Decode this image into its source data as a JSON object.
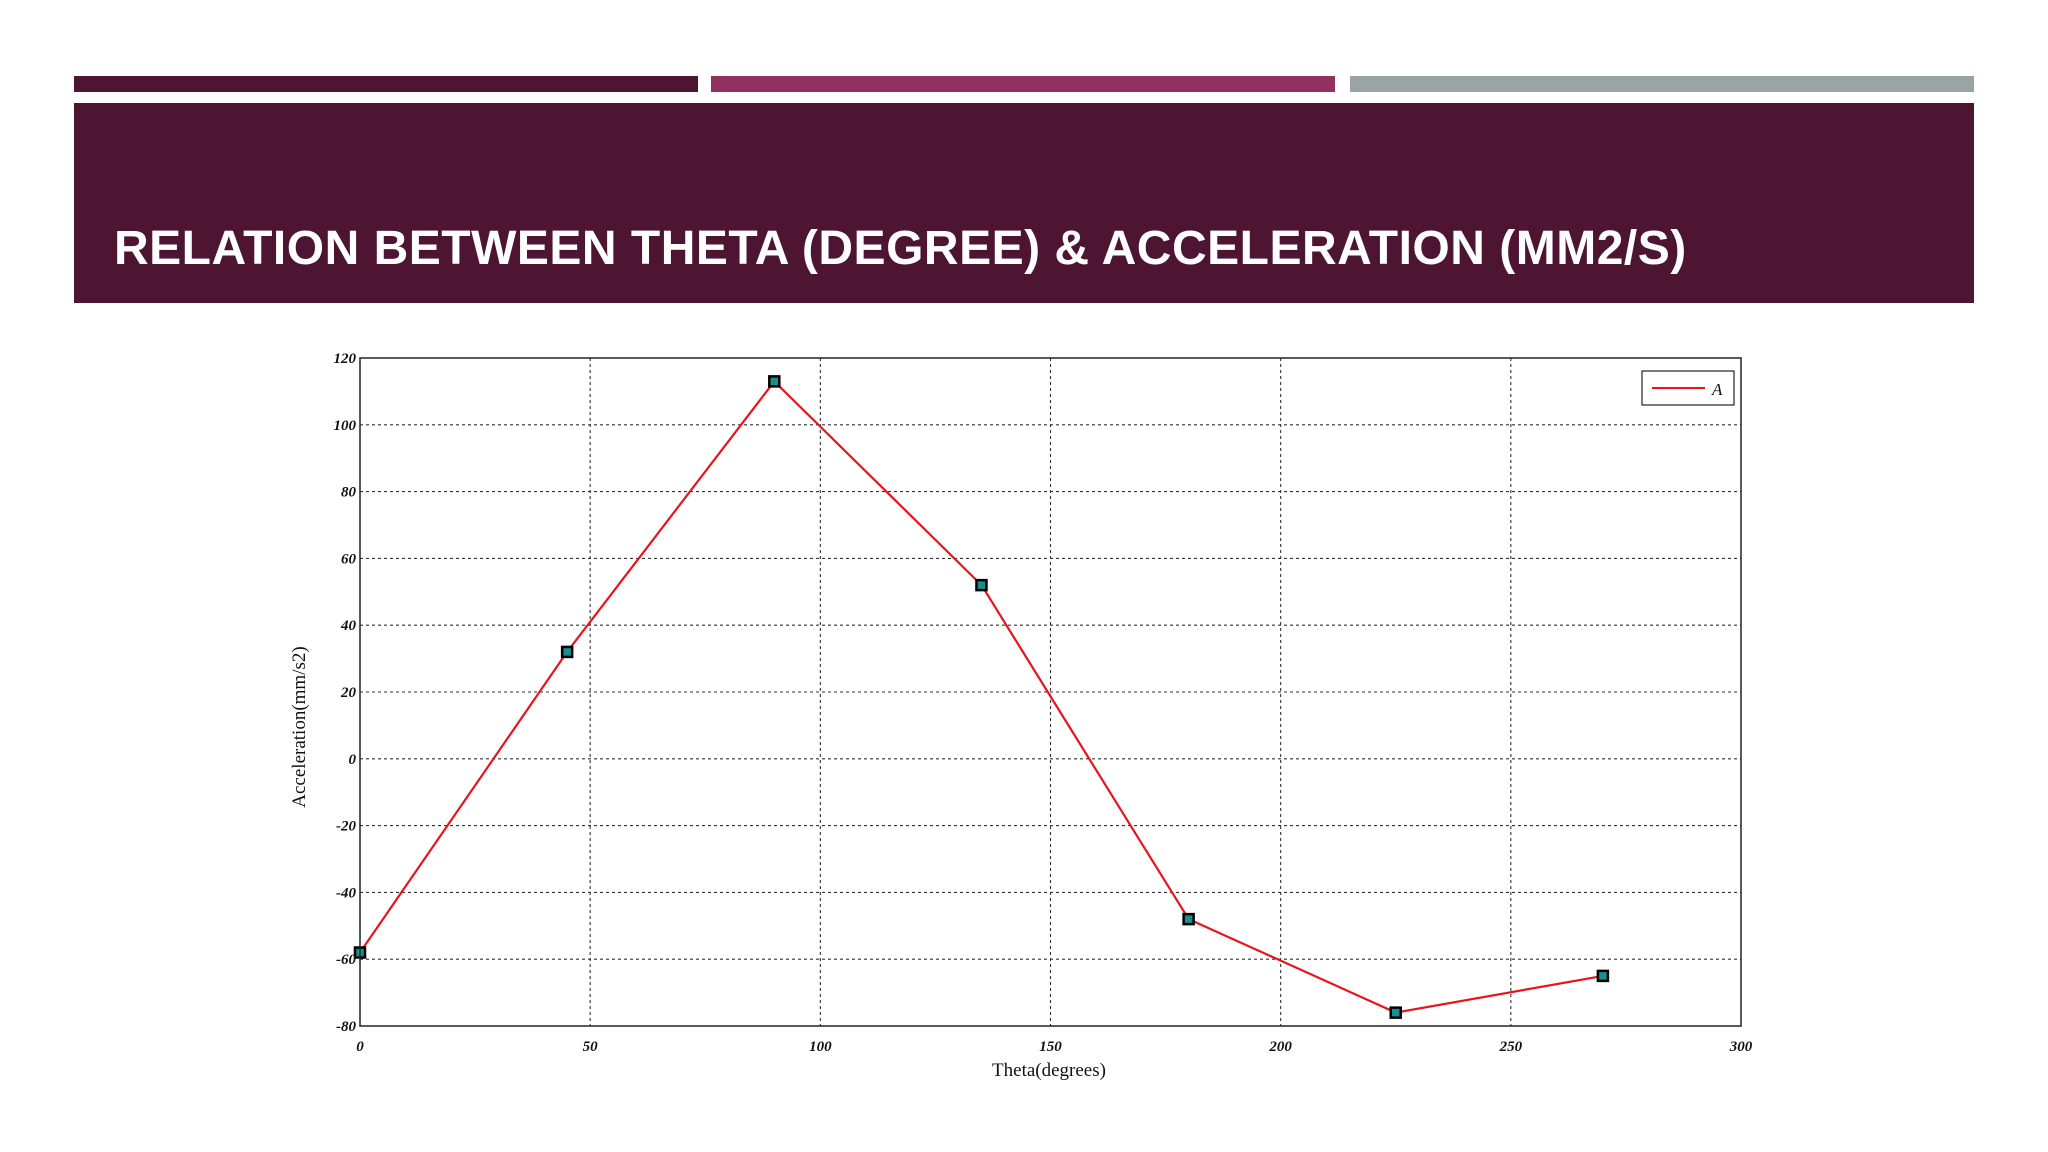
{
  "slide": {
    "title": "RELATION BETWEEN THETA (DEGREE) & ACCELERATION (MM2/S)",
    "header_color": "#4e1533",
    "accent_bars": [
      "#4e1533",
      "#913162",
      "#9aa4a6"
    ]
  },
  "chart_data": {
    "type": "line",
    "title": "",
    "xlabel": "Theta(degrees)",
    "ylabel": "Acceleration(mm/s2)",
    "xlim": [
      0,
      300
    ],
    "ylim": [
      -80,
      120
    ],
    "x_ticks": [
      0,
      50,
      100,
      150,
      200,
      250,
      300
    ],
    "y_ticks": [
      120,
      100,
      80,
      60,
      40,
      20,
      0,
      -20,
      -40,
      -60,
      -80
    ],
    "grid": true,
    "legend_position": "top-right",
    "series": [
      {
        "name": "A",
        "color": "#e8141c",
        "x": [
          0,
          45,
          90,
          135,
          180,
          225,
          270
        ],
        "y": [
          -58,
          32,
          113,
          52,
          -48,
          -76,
          -65
        ]
      }
    ]
  }
}
